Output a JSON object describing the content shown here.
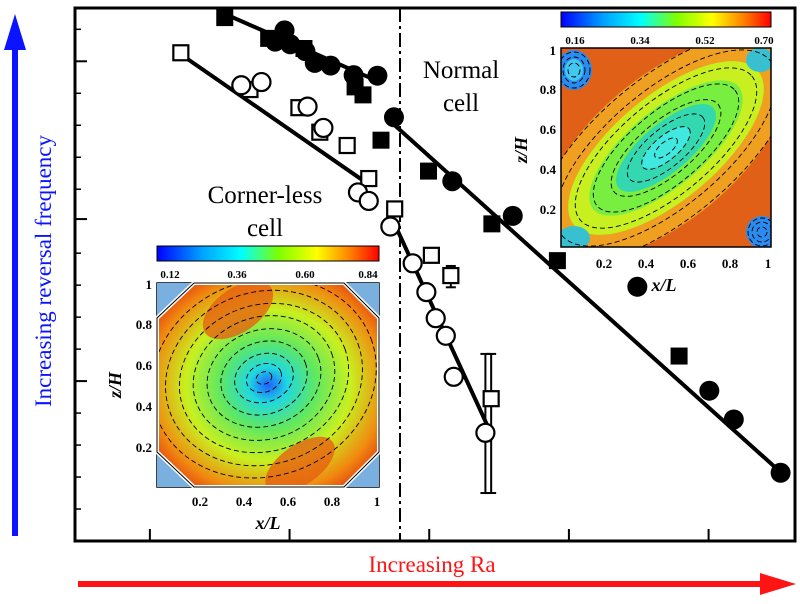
{
  "labels": {
    "left_arrow": "Increasing reversal frequency",
    "bottom_arrow": "Increasing Ra",
    "normal_cell": [
      "Normal",
      "cell"
    ],
    "cornerless_cell": [
      "Corner-less",
      "cell"
    ]
  },
  "colors": {
    "arrow_left": "#0a14ff",
    "arrow_bottom": "#ff1414",
    "axes": "#000000"
  },
  "chart_data": [
    {
      "type": "scatter",
      "title": "",
      "xlabel": "Increasing Ra",
      "ylabel": "Increasing reversal frequency",
      "xlim": [
        0,
        1
      ],
      "ylim": [
        0,
        1
      ],
      "scale": "log-log (qualitative, unlabeled ticks)",
      "divider_x": 0.417,
      "series": [
        {
          "marker": "filled-square",
          "group": "corner-less cell",
          "points": [
            [
              0.208,
              0.982
            ],
            [
              0.269,
              0.943
            ],
            [
              0.318,
              0.924
            ],
            [
              0.389,
              0.852
            ],
            [
              0.4,
              0.837
            ]
          ]
        },
        {
          "marker": "filled-circle",
          "group": "corner-less cell",
          "points": [
            [
              0.278,
              0.937
            ],
            [
              0.291,
              0.958
            ],
            [
              0.299,
              0.932
            ],
            [
              0.32,
              0.919
            ],
            [
              0.333,
              0.897
            ],
            [
              0.355,
              0.892
            ],
            [
              0.387,
              0.874
            ],
            [
              0.42,
              0.873
            ]
          ]
        },
        {
          "marker": "open-square",
          "group": "corner-less cell",
          "points": [
            [
              0.147,
              0.916
            ],
            [
              0.243,
              0.847
            ],
            [
              0.311,
              0.813
            ],
            [
              0.34,
              0.767
            ],
            [
              0.378,
              0.742
            ],
            [
              0.408,
              0.68
            ]
          ]
        },
        {
          "marker": "open-circle",
          "group": "corner-less cell",
          "points": [
            [
              0.231,
              0.855
            ],
            [
              0.259,
              0.861
            ],
            [
              0.323,
              0.815
            ],
            [
              0.345,
              0.775
            ],
            [
              0.393,
              0.654
            ],
            [
              0.408,
              0.638
            ]
          ]
        },
        {
          "marker": "filled-square",
          "group": "normal cell",
          "points": [
            [
              0.425,
              0.752
            ],
            [
              0.491,
              0.694
            ],
            [
              0.579,
              0.595
            ],
            [
              0.67,
              0.526
            ],
            [
              0.839,
              0.347
            ]
          ]
        },
        {
          "marker": "filled-circle",
          "group": "normal cell",
          "points": [
            [
              0.443,
              0.795
            ],
            [
              0.524,
              0.675
            ],
            [
              0.608,
              0.61
            ],
            [
              0.781,
              0.477
            ],
            [
              0.881,
              0.282
            ],
            [
              0.915,
              0.228
            ],
            [
              0.98,
              0.128
            ]
          ]
        },
        {
          "marker": "open-square",
          "group": "normal cell",
          "points": [
            [
              0.444,
              0.623
            ],
            [
              0.495,
              0.536
            ],
            [
              0.522,
              0.498
            ],
            [
              0.578,
              0.267
            ]
          ],
          "error_y": [
            null,
            null,
            [
              0.476,
              0.516
            ],
            [
              0.09,
              0.351
            ]
          ]
        },
        {
          "marker": "open-circle",
          "group": "normal cell",
          "points": [
            [
              0.438,
              0.59
            ],
            [
              0.469,
              0.521
            ],
            [
              0.488,
              0.467
            ],
            [
              0.501,
              0.418
            ],
            [
              0.515,
              0.385
            ],
            [
              0.526,
              0.308
            ],
            [
              0.57,
              0.203
            ]
          ],
          "error_y": [
            null,
            null,
            null,
            null,
            null,
            null,
            [
              0.09,
              0.351
            ]
          ]
        }
      ],
      "fit_lines": [
        {
          "group": "corner-less cell",
          "from": [
            0.208,
            0.989
          ],
          "to": [
            0.42,
            0.863
          ]
        },
        {
          "group": "corner-less cell",
          "from": [
            0.146,
            0.914
          ],
          "to": [
            0.408,
            0.669
          ]
        },
        {
          "group": "normal cell",
          "from": [
            0.435,
            0.791
          ],
          "to": [
            0.985,
            0.123
          ]
        },
        {
          "group": "normal cell",
          "from": [
            0.436,
            0.618
          ],
          "to": [
            0.575,
            0.21
          ]
        }
      ]
    },
    {
      "type": "heatmap",
      "name": "normal-cell-inset",
      "xlabel": "x/L",
      "ylabel": "z/H",
      "xticks": [
        "0.2",
        "0.4",
        "0.6",
        "0.8",
        "1"
      ],
      "yticks": [
        "0.2",
        "0.4",
        "0.6",
        "0.8",
        "1"
      ],
      "colorbar_ticks": [
        "0.16",
        "0.34",
        "0.52",
        "0.70"
      ],
      "range": [
        0.16,
        0.7
      ],
      "colormap": "jet",
      "description": "large clockwise diagonal roll with corner vortices"
    },
    {
      "type": "heatmap",
      "name": "cornerless-cell-inset",
      "xlabel": "x/L",
      "ylabel": "z/H",
      "xticks": [
        "0.2",
        "0.4",
        "0.6",
        "0.8",
        "1"
      ],
      "yticks": [
        "0.2",
        "0.4",
        "0.6",
        "0.8",
        "1"
      ],
      "colorbar_ticks": [
        "0.12",
        "0.36",
        "0.60",
        "0.84"
      ],
      "range": [
        0.12,
        0.84
      ],
      "colormap": "jet",
      "description": "single central roll in octagonal cell with truncated corners"
    }
  ]
}
